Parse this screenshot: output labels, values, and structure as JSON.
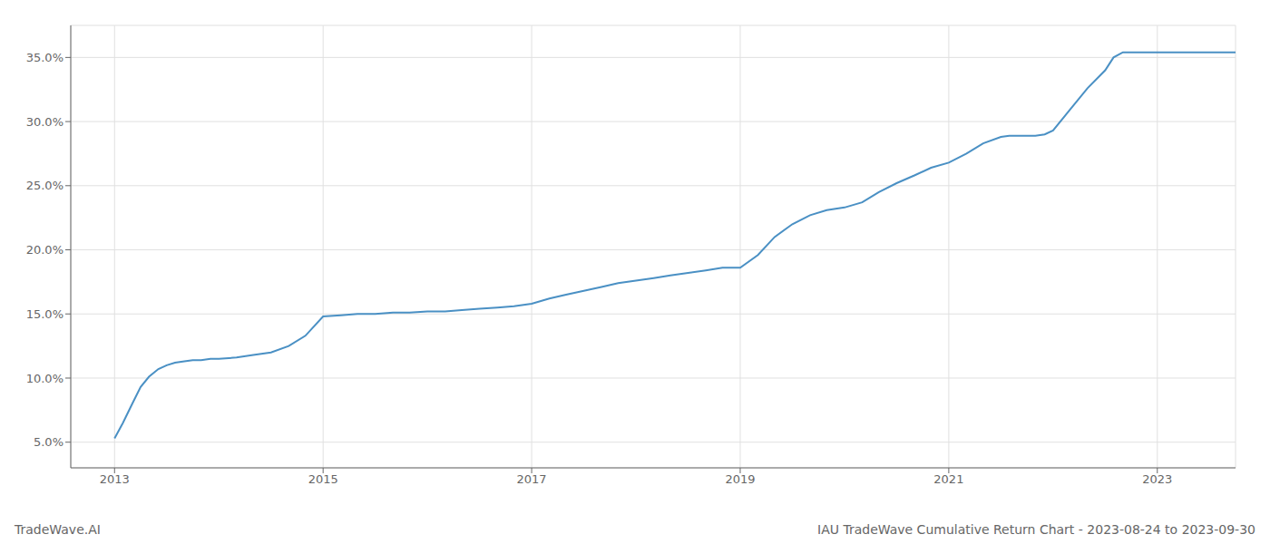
{
  "chart_data": {
    "type": "line",
    "title": "IAU TradeWave Cumulative Return Chart - 2023-08-24 to 2023-09-30",
    "annotations": [
      "TradeWave.AI"
    ],
    "x": [
      2013.0,
      2013.08,
      2013.17,
      2013.25,
      2013.33,
      2013.42,
      2013.5,
      2013.58,
      2013.67,
      2013.75,
      2013.83,
      2013.92,
      2014.0,
      2014.17,
      2014.33,
      2014.5,
      2014.67,
      2014.83,
      2015.0,
      2015.17,
      2015.33,
      2015.5,
      2015.67,
      2015.83,
      2016.0,
      2016.17,
      2016.33,
      2016.5,
      2016.67,
      2016.83,
      2017.0,
      2017.17,
      2017.33,
      2017.5,
      2017.67,
      2017.83,
      2018.0,
      2018.17,
      2018.33,
      2018.5,
      2018.67,
      2018.83,
      2019.0,
      2019.17,
      2019.33,
      2019.5,
      2019.67,
      2019.83,
      2020.0,
      2020.17,
      2020.33,
      2020.5,
      2020.67,
      2020.83,
      2021.0,
      2021.17,
      2021.33,
      2021.5,
      2021.58,
      2021.67,
      2021.75,
      2021.83,
      2021.92,
      2022.0,
      2022.17,
      2022.33,
      2022.5,
      2022.58,
      2022.67,
      2022.75,
      2022.83,
      2022.92,
      2023.0,
      2023.17,
      2023.33,
      2023.5,
      2023.67,
      2023.75
    ],
    "values": [
      0.053,
      0.065,
      0.08,
      0.093,
      0.101,
      0.107,
      0.11,
      0.112,
      0.113,
      0.114,
      0.114,
      0.115,
      0.115,
      0.116,
      0.118,
      0.12,
      0.125,
      0.133,
      0.148,
      0.149,
      0.15,
      0.15,
      0.151,
      0.151,
      0.152,
      0.152,
      0.153,
      0.154,
      0.155,
      0.156,
      0.158,
      0.162,
      0.165,
      0.168,
      0.171,
      0.174,
      0.176,
      0.178,
      0.18,
      0.182,
      0.184,
      0.186,
      0.186,
      0.196,
      0.21,
      0.22,
      0.227,
      0.231,
      0.233,
      0.237,
      0.245,
      0.252,
      0.258,
      0.264,
      0.268,
      0.275,
      0.283,
      0.288,
      0.289,
      0.289,
      0.289,
      0.289,
      0.29,
      0.293,
      0.31,
      0.326,
      0.34,
      0.35,
      0.354,
      0.354,
      0.354,
      0.354,
      0.354,
      0.354,
      0.354,
      0.354,
      0.354,
      0.354
    ],
    "color": "#4a90c4",
    "xlim": [
      2012.58,
      2023.75
    ],
    "xticks": [
      2013,
      2015,
      2017,
      2019,
      2021,
      2023
    ],
    "ylim": [
      0.03,
      0.375
    ],
    "yticks": [
      {
        "value": 0.05,
        "label": "5.0%"
      },
      {
        "value": 0.1,
        "label": "10.0%"
      },
      {
        "value": 0.15,
        "label": "15.0%"
      },
      {
        "value": 0.2,
        "label": "20.0%"
      },
      {
        "value": 0.25,
        "label": "25.0%"
      },
      {
        "value": 0.3,
        "label": "30.0%"
      },
      {
        "value": 0.35,
        "label": "35.0%"
      }
    ],
    "grid": true
  }
}
